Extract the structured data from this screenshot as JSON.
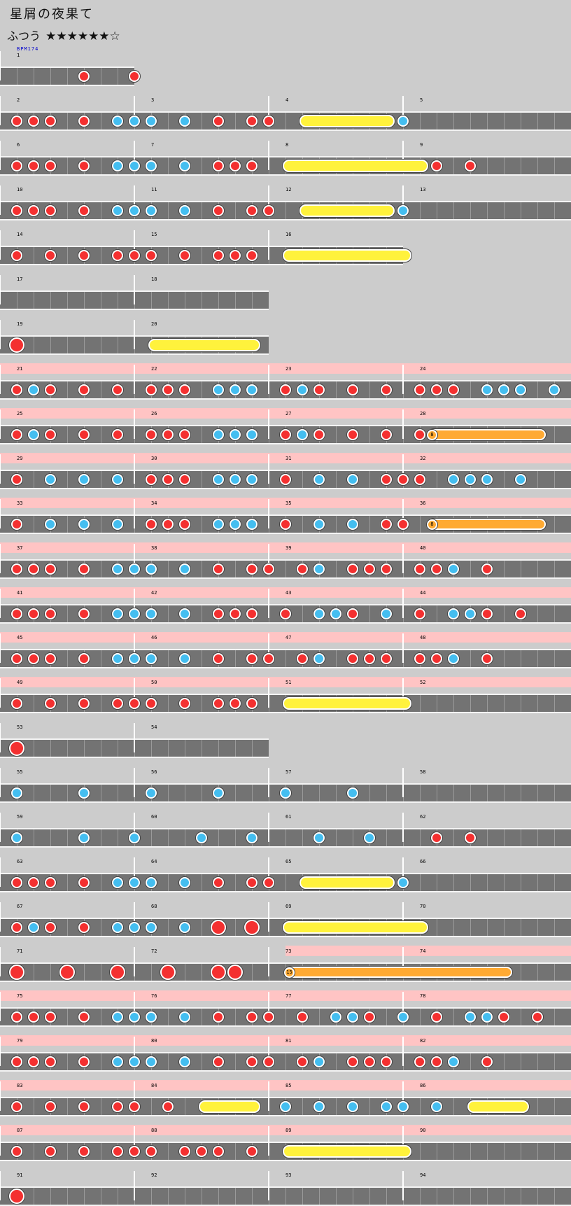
{
  "header": {
    "title": "星屑の夜果て",
    "difficulty": "ふつう",
    "stars": "★★★★★★☆",
    "bpm": "BPM174"
  },
  "colors": {
    "background": "#cccccc",
    "lane": "#737373",
    "gogo": "#ffc4c4",
    "don": "#f43030",
    "ka": "#44bef0",
    "roll": "#fff23c",
    "balloon": "#ffaa33"
  },
  "rows": [
    {
      "gogo": false,
      "bars": 1,
      "notes": "....o..o"
    },
    {
      "gogo": false,
      "bars": 4,
      "notes": "ooo.o.xxx.x.o.oo",
      "roll": [
        17.5,
        22.5
      ],
      "tail": "x"
    },
    {
      "gogo": false,
      "bars": 4,
      "notes": "ooo.o.xxx.x.ooo.",
      "roll": [
        16.5,
        24.5
      ],
      "tail": "..o.o"
    },
    {
      "gogo": false,
      "bars": 4,
      "notes": "ooo.o.xxx.x.o.oo",
      "roll": [
        17.5,
        22.5
      ],
      "tail": "x"
    },
    {
      "gogo": false,
      "bars": 3,
      "notes": "o.o.o.ooo.o.ooo.",
      "roll": [
        16.5,
        23.5
      ]
    },
    {
      "gogo": false,
      "bars": 2,
      "notes": ""
    },
    {
      "gogo": false,
      "bars": 2,
      "notes": "O",
      "roll": [
        8.5,
        14.5
      ]
    },
    {
      "gogo": true,
      "bars": 4,
      "notes": "oxo.o.o.ooo.xxx.oxo.o.o.ooo.xxx.x"
    },
    {
      "gogo": true,
      "bars": 4,
      "notes": "oxo.o.o.ooo.xxx.oxo.o.o.oo",
      "balloon": [
        25,
        31.5,
        "8"
      ]
    },
    {
      "gogo": true,
      "bars": 4,
      "notes": "o.x.x.x.ooo.xxx.o.x.x.ooo.xxx.x"
    },
    {
      "gogo": true,
      "bars": 4,
      "notes": "o.x.x.x.ooo.xxx.o.x.x.oo",
      "balloon": [
        25,
        31.5,
        "8"
      ]
    },
    {
      "gogo": true,
      "bars": 4,
      "notes": "ooo.o.xxx.x.o.oo.ox.ooo.oox.o"
    },
    {
      "gogo": true,
      "bars": 4,
      "notes": "ooo.o.xxx.x.ooo.o.xxo.x.o.xxo.o"
    },
    {
      "gogo": true,
      "bars": 4,
      "notes": "ooo.o.xxx.x.o.oo.ox.ooo.oox.o"
    },
    {
      "gogo": true,
      "bars": 4,
      "notes": "o.o.o.ooo.o.ooo.",
      "roll": [
        16.5,
        23.5
      ]
    },
    {
      "gogo": false,
      "bars": 2,
      "notes": "O"
    },
    {
      "gogo": false,
      "bars": 4,
      "notes": "x...x...x...x...x...x"
    },
    {
      "gogo": false,
      "bars": 4,
      "notes": "x...x..x...x..x...x..x...o.o"
    },
    {
      "gogo": false,
      "bars": 4,
      "notes": "ooo.o.xxx.x.o.oo",
      "roll": [
        17.5,
        22.5
      ],
      "tail": "x"
    },
    {
      "gogo": false,
      "bars": 4,
      "notes": "oxo.o.xxx.x.O.O.",
      "roll": [
        16.5,
        24.5
      ]
    },
    {
      "gogo": false,
      "bars": 4,
      "notes": "O..O..O..O..OO",
      "balloon": [
        16.5,
        29.5,
        "15"
      ],
      "gogoFrom": 17
    },
    {
      "gogo": true,
      "bars": 4,
      "notes": "ooo.o.xxx.x.o.oo.o.xxo.x.o.xxo.o"
    },
    {
      "gogo": true,
      "bars": 4,
      "notes": "ooo.o.xxx.x.o.oo.ox.ooo.oox.o"
    },
    {
      "gogo": true,
      "bars": 4,
      "notes": "o.o.o.oo.o",
      "roll": [
        11.5,
        14.5
      ],
      "tail2": "x.x.x.xx.x",
      "roll2": [
        27.5,
        30.5
      ]
    },
    {
      "gogo": true,
      "bars": 4,
      "notes": "o.o.o.ooo.ooo.o.",
      "roll": [
        16.5,
        23.5
      ]
    },
    {
      "gogo": false,
      "bars": 4,
      "notes": "O"
    }
  ]
}
